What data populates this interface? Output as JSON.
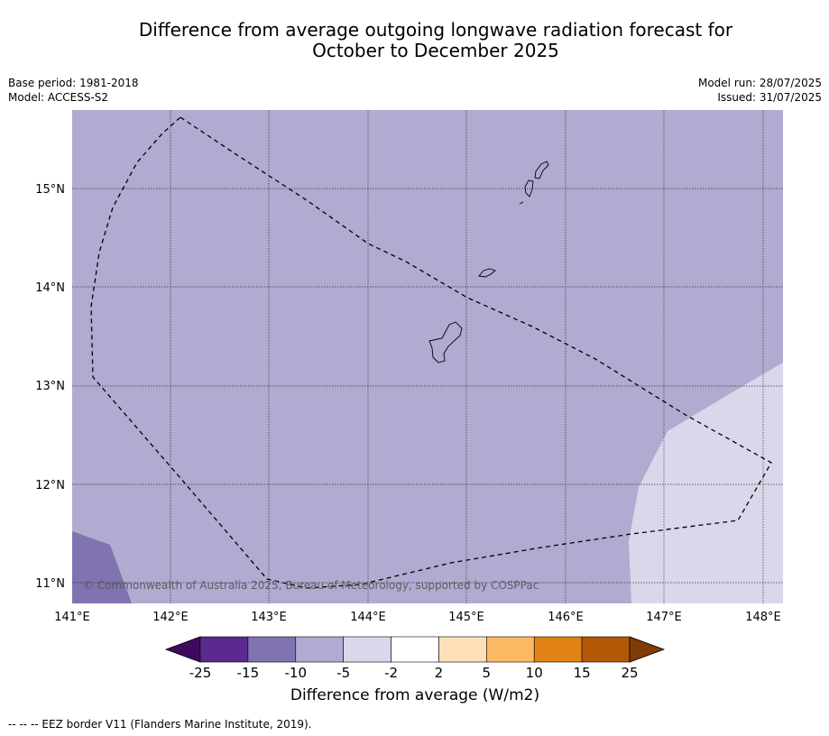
{
  "title_line1": "Difference from average outgoing longwave radiation forecast for",
  "title_line2": "October to December 2025",
  "meta_left": [
    "Base period: 1981-2018",
    "Model: ACCESS-S2"
  ],
  "meta_right": [
    "Model run: 28/07/2025",
    "Issued: 31/07/2025"
  ],
  "copyright": "© Commonwealth of Australia 2025, Bureau of Meteorology, supported by COSPPac",
  "lat_labels": [
    "15°N",
    "14°N",
    "13°N",
    "12°N",
    "11°N"
  ],
  "lon_labels": [
    "141°E",
    "142°E",
    "143°E",
    "144°E",
    "145°E",
    "146°E",
    "147°E",
    "148°E"
  ],
  "colorbar": {
    "title": "Difference from average (W/m2)",
    "ticks": [
      "-25",
      "-15",
      "-10",
      "-5",
      "-2",
      "2",
      "5",
      "10",
      "15",
      "25"
    ],
    "colors": [
      "#3f0a5e",
      "#5b2a8e",
      "#8073b0",
      "#b1aad1",
      "#d9d8ea",
      "#ffffff",
      "#fde0b8",
      "#fdb863",
      "#e08214",
      "#b35806",
      "#7f3b08"
    ]
  },
  "footer_note": "--  --  -- EEZ border V11 (Flanders Marine Institute, 2019).",
  "map_colors": {
    "background_field": "#b1aad1",
    "low_field": "#8073b0",
    "high_field": "#d9d8ea"
  }
}
